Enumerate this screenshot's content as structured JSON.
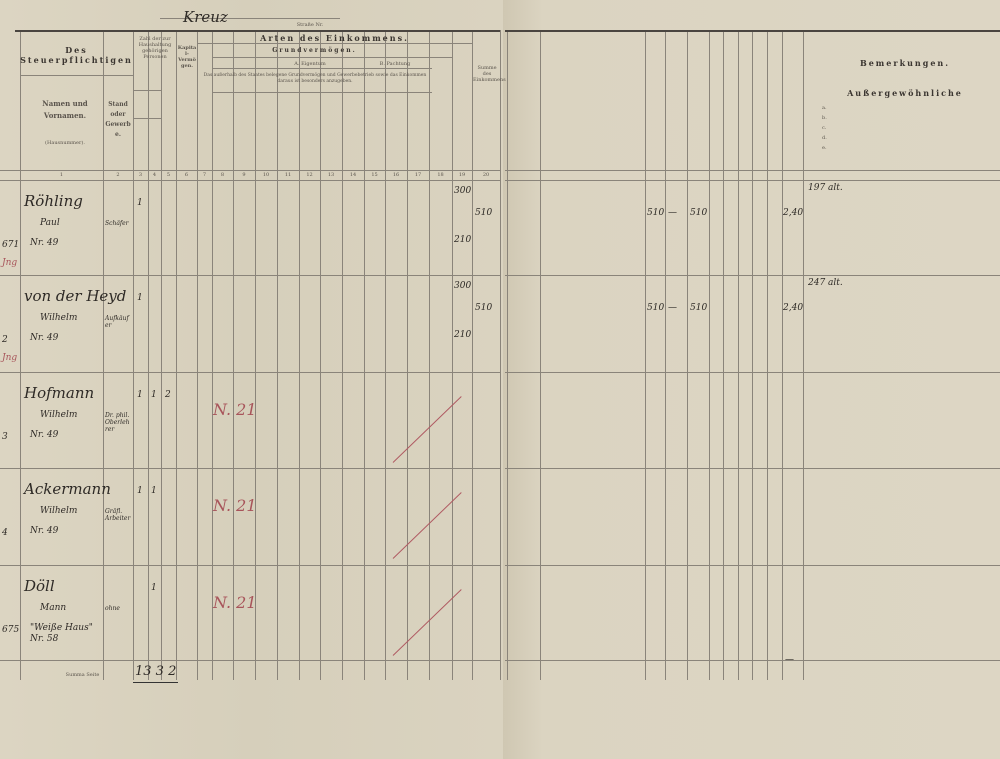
{
  "document": {
    "street_handwritten": "Kreuz",
    "street_label": "Straße Nr.",
    "left_page": {
      "section_title": "Arten des Einkommens.",
      "taxpayer_header": "Des Steuerpflichtigen",
      "col_names": "Namen und Vornamen.",
      "col_names_sub": "(Hausnummer).",
      "col_stand": "Stand oder Gewerbe.",
      "col_household": "Zahl der zur Haushaltung gehörigen Personen",
      "col_capital": "Kapital-Vermögen.",
      "grundvermoegen": "Grundvermögen.",
      "pachtung_header": "B. Pachtung",
      "eigentum_header": "A. Eigentum",
      "note": "Das außerhalb des Staates belegene Grundvermögen und Gewerbebetrieb sowie das Einkommen daraus ist besonders anzugeben.",
      "col_total": "Summe des Einkommens",
      "column_numbers": [
        "1",
        "2",
        "3",
        "4",
        "5",
        "6",
        "7",
        "8",
        "9",
        "10",
        "11",
        "12",
        "13",
        "14",
        "15",
        "16",
        "17",
        "18",
        "19",
        "20"
      ]
    },
    "right_page": {
      "remarks_title": "Bemerkungen.",
      "extraordinary_title": "Außergewöhnliche",
      "extraordinary_items": [
        "a.",
        "b.",
        "c.",
        "d.",
        "e."
      ]
    },
    "entries": [
      {
        "row_no": "671",
        "mark": "Jng",
        "surname": "Röhling",
        "first_name": "Paul",
        "house": "Nr. 49",
        "stand": "Schäfer",
        "household": [
          "1",
          "",
          ""
        ],
        "income_a": "300",
        "income_b": "210",
        "total": "510",
        "assessed": "510",
        "dash": "—",
        "assessed2": "510",
        "tax": "2,40",
        "remark": "197 alt."
      },
      {
        "row_no": "2",
        "mark": "Jng",
        "surname": "von der Heyd",
        "first_name": "Wilhelm",
        "house": "Nr. 49",
        "stand": "Aufkäufer",
        "household": [
          "1",
          "",
          ""
        ],
        "income_a": "300",
        "income_b": "210",
        "total": "510",
        "assessed": "510",
        "dash": "—",
        "assessed2": "510",
        "tax": "2,40",
        "remark": "247 alt."
      },
      {
        "row_no": "3",
        "mark": "",
        "surname": "Hofmann",
        "first_name": "Wilhelm",
        "house": "Nr. 49",
        "stand": "Dr. phil. Oberlehrer",
        "household": [
          "1",
          "1",
          "2"
        ],
        "red_note": "N. 21"
      },
      {
        "row_no": "4",
        "mark": "",
        "surname": "Ackermann",
        "first_name": "Wilhelm",
        "house": "Nr. 49",
        "stand": "Gräfl. Arbeiter",
        "household": [
          "1",
          "1",
          ""
        ],
        "red_note": "N. 21"
      },
      {
        "row_no": "675",
        "mark": "",
        "surname": "Döll",
        "first_name": "Mann",
        "house": "\"Weiße Haus\" Nr. 58",
        "stand": "ohne",
        "household": [
          "",
          "1",
          ""
        ],
        "red_note": "N. 21"
      }
    ],
    "footer": {
      "label": "Summa Seite",
      "values": "13 3 2",
      "right_total": "—"
    }
  }
}
